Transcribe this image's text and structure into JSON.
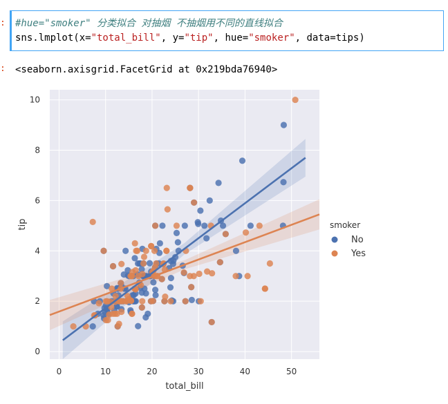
{
  "cell": {
    "prompt_in": ":",
    "prompt_out": ":",
    "comment": "#hue=\"smoker\" 分类拟合 对抽烟 不抽烟用不同的直线拟合",
    "code_fn": "sns.lmplot(x=",
    "code_x": "\"total_bill\"",
    "code_sep1": ", y=",
    "code_y": "\"tip\"",
    "code_sep2": ", hue=",
    "code_hue": "\"smoker\"",
    "code_sep3": ", data=tips)",
    "output": "<seaborn.axisgrid.FacetGrid at 0x219bda76940>"
  },
  "colors": {
    "no": "#4c72b0",
    "yes": "#dd8452",
    "plot_bg": "#eaeaf2",
    "grid": "#ffffff"
  },
  "chart_data": {
    "type": "scatter",
    "xlabel": "total_bill",
    "ylabel": "tip",
    "xlim": [
      -2,
      56
    ],
    "ylim": [
      -0.3,
      10.4
    ],
    "xticks": [
      0,
      10,
      20,
      30,
      40,
      50
    ],
    "yticks": [
      0,
      2,
      4,
      6,
      8,
      10
    ],
    "legend_title": "smoker",
    "legend_placement": "right",
    "series": [
      {
        "name": "No",
        "color": "#4c72b0",
        "fit": {
          "x": [
            0.8,
            53
          ],
          "y": [
            0.45,
            7.7
          ]
        },
        "points": [
          [
            16.99,
            1.01
          ],
          [
            10.34,
            1.66
          ],
          [
            21.01,
            3.5
          ],
          [
            23.68,
            3.31
          ],
          [
            24.59,
            3.61
          ],
          [
            25.29,
            4.71
          ],
          [
            8.77,
            2.0
          ],
          [
            26.88,
            3.12
          ],
          [
            15.04,
            1.96
          ],
          [
            14.78,
            3.23
          ],
          [
            10.27,
            1.71
          ],
          [
            35.26,
            5.0
          ],
          [
            15.42,
            1.57
          ],
          [
            18.43,
            3.0
          ],
          [
            14.83,
            3.02
          ],
          [
            21.58,
            3.92
          ],
          [
            10.33,
            1.67
          ],
          [
            16.29,
            3.71
          ],
          [
            16.97,
            3.5
          ],
          [
            20.65,
            3.35
          ],
          [
            17.92,
            4.08
          ],
          [
            20.29,
            2.75
          ],
          [
            15.77,
            2.23
          ],
          [
            39.42,
            7.58
          ],
          [
            19.82,
            3.18
          ],
          [
            17.81,
            2.34
          ],
          [
            13.37,
            2.0
          ],
          [
            12.69,
            2.0
          ],
          [
            21.7,
            4.3
          ],
          [
            19.65,
            3.0
          ],
          [
            9.55,
            1.45
          ],
          [
            18.35,
            2.5
          ],
          [
            15.06,
            3.0
          ],
          [
            20.69,
            2.45
          ],
          [
            17.78,
            3.27
          ],
          [
            24.06,
            3.6
          ],
          [
            16.31,
            2.0
          ],
          [
            16.93,
            3.07
          ],
          [
            18.69,
            2.31
          ],
          [
            31.27,
            5.0
          ],
          [
            16.04,
            2.24
          ],
          [
            17.46,
            2.54
          ],
          [
            13.94,
            3.06
          ],
          [
            9.68,
            1.32
          ],
          [
            30.4,
            5.6
          ],
          [
            18.29,
            3.0
          ],
          [
            22.23,
            5.0
          ],
          [
            32.4,
            6.0
          ],
          [
            28.55,
            2.05
          ],
          [
            18.04,
            3.0
          ],
          [
            12.54,
            2.5
          ],
          [
            10.29,
            2.6
          ],
          [
            34.81,
            5.2
          ],
          [
            9.94,
            1.56
          ],
          [
            25.56,
            4.34
          ],
          [
            19.49,
            3.51
          ],
          [
            48.27,
            6.73
          ],
          [
            20.08,
            3.15
          ],
          [
            16.0,
            2.0
          ],
          [
            34.3,
            6.7
          ],
          [
            41.19,
            5.0
          ],
          [
            27.05,
            5.0
          ],
          [
            16.43,
            2.3
          ],
          [
            8.35,
            1.5
          ],
          [
            18.64,
            1.36
          ],
          [
            11.87,
            1.63
          ],
          [
            9.78,
            1.73
          ],
          [
            7.51,
            2.0
          ],
          [
            14.07,
            2.5
          ],
          [
            13.13,
            2.0
          ],
          [
            17.26,
            2.74
          ],
          [
            24.55,
            2.0
          ],
          [
            19.77,
            2.0
          ],
          [
            29.85,
            5.14
          ],
          [
            48.17,
            5.0
          ],
          [
            25.0,
            3.75
          ],
          [
            13.39,
            2.61
          ],
          [
            16.49,
            2.0
          ],
          [
            21.5,
            3.5
          ],
          [
            12.66,
            2.5
          ],
          [
            16.21,
            2.0
          ],
          [
            13.81,
            2.0
          ],
          [
            24.52,
            3.48
          ],
          [
            20.76,
            2.24
          ],
          [
            31.71,
            4.5
          ],
          [
            20.69,
            5.0
          ],
          [
            7.25,
            1.0
          ],
          [
            12.6,
            1.0
          ],
          [
            32.83,
            1.17
          ],
          [
            35.83,
            4.67
          ],
          [
            29.03,
            5.92
          ],
          [
            27.18,
            2.0
          ],
          [
            22.67,
            2.0
          ],
          [
            17.82,
            1.75
          ],
          [
            18.78,
            3.0
          ],
          [
            48.33,
            9.0
          ],
          [
            15.48,
            2.02
          ],
          [
            11.38,
            2.0
          ],
          [
            11.02,
            1.98
          ],
          [
            17.47,
            3.5
          ],
          [
            12.26,
            2.0
          ],
          [
            15.98,
            3.0
          ],
          [
            28.17,
            6.5
          ],
          [
            14.31,
            4.0
          ],
          [
            20.45,
            3.0
          ],
          [
            13.28,
            2.72
          ],
          [
            22.12,
            2.88
          ],
          [
            20.23,
            2.01
          ],
          [
            11.61,
            3.39
          ],
          [
            10.07,
            1.83
          ],
          [
            12.43,
            1.8
          ],
          [
            26.59,
            3.41
          ],
          [
            38.73,
            3.0
          ],
          [
            24.27,
            2.03
          ],
          [
            12.76,
            2.23
          ],
          [
            30.06,
            2.0
          ],
          [
            22.42,
            3.48
          ],
          [
            20.92,
            4.08
          ],
          [
            15.36,
            1.64
          ],
          [
            9.6,
            4.0
          ],
          [
            34.63,
            3.55
          ],
          [
            38.07,
            4.0
          ],
          [
            23.95,
            2.55
          ],
          [
            25.71,
            4.0
          ],
          [
            17.31,
            3.5
          ],
          [
            29.93,
            5.07
          ],
          [
            10.65,
            1.5
          ],
          [
            12.43,
            1.8
          ],
          [
            24.08,
            2.92
          ],
          [
            11.69,
            2.31
          ],
          [
            13.42,
            1.68
          ],
          [
            14.26,
            2.5
          ],
          [
            15.95,
            2.0
          ],
          [
            12.48,
            2.52
          ],
          [
            19.08,
            1.5
          ],
          [
            13.0,
            2.0
          ],
          [
            18.15,
            3.5
          ],
          [
            19.44,
            3.0
          ],
          [
            28.44,
            2.56
          ]
        ]
      },
      {
        "name": "Yes",
        "color": "#dd8452",
        "fit": {
          "x": [
            -2,
            56
          ],
          "y": [
            1.45,
            5.45
          ]
        },
        "points": [
          [
            38.01,
            3.0
          ],
          [
            11.24,
            1.76
          ],
          [
            20.29,
            3.21
          ],
          [
            13.81,
            2.0
          ],
          [
            11.02,
            1.98
          ],
          [
            18.29,
            3.76
          ],
          [
            17.59,
            2.64
          ],
          [
            20.08,
            3.15
          ],
          [
            16.45,
            2.47
          ],
          [
            3.07,
            1.0
          ],
          [
            20.23,
            2.01
          ],
          [
            15.01,
            2.09
          ],
          [
            12.02,
            1.97
          ],
          [
            17.07,
            3.0
          ],
          [
            26.86,
            3.14
          ],
          [
            25.28,
            5.0
          ],
          [
            14.73,
            2.2
          ],
          [
            10.51,
            1.25
          ],
          [
            17.92,
            3.08
          ],
          [
            44.3,
            2.5
          ],
          [
            22.42,
            3.48
          ],
          [
            15.48,
            2.02
          ],
          [
            5.75,
            1.0
          ],
          [
            16.32,
            4.3
          ],
          [
            22.75,
            3.25
          ],
          [
            40.17,
            4.73
          ],
          [
            27.28,
            4.0
          ],
          [
            12.03,
            1.5
          ],
          [
            21.01,
            3.0
          ],
          [
            12.46,
            1.5
          ],
          [
            11.35,
            2.5
          ],
          [
            15.38,
            3.0
          ],
          [
            44.3,
            2.5
          ],
          [
            22.49,
            3.5
          ],
          [
            20.65,
            3.35
          ],
          [
            14.48,
            2.0
          ],
          [
            28.97,
            3.0
          ],
          [
            32.68,
            5.0
          ],
          [
            23.33,
            5.65
          ],
          [
            45.35,
            3.5
          ],
          [
            19.81,
            4.19
          ],
          [
            28.15,
            3.0
          ],
          [
            11.59,
            1.5
          ],
          [
            7.74,
            1.44
          ],
          [
            30.14,
            3.09
          ],
          [
            12.16,
            2.2
          ],
          [
            13.42,
            3.48
          ],
          [
            8.58,
            1.92
          ],
          [
            13.42,
            1.58
          ],
          [
            16.27,
            2.5
          ],
          [
            10.09,
            2.0
          ],
          [
            20.45,
            3.0
          ],
          [
            13.28,
            2.72
          ],
          [
            22.12,
            2.88
          ],
          [
            24.01,
            2.0
          ],
          [
            15.69,
            3.0
          ],
          [
            11.61,
            3.39
          ],
          [
            10.77,
            1.47
          ],
          [
            15.53,
            3.0
          ],
          [
            10.07,
            1.25
          ],
          [
            12.6,
            1.0
          ],
          [
            32.83,
            1.17
          ],
          [
            35.83,
            4.67
          ],
          [
            29.03,
            5.92
          ],
          [
            27.18,
            2.0
          ],
          [
            22.67,
            2.0
          ],
          [
            17.82,
            1.75
          ],
          [
            28.17,
            6.5
          ],
          [
            23.1,
            4.0
          ],
          [
            15.69,
            1.5
          ],
          [
            19.81,
            4.19
          ],
          [
            28.44,
            2.56
          ],
          [
            15.48,
            2.02
          ],
          [
            16.58,
            4.0
          ],
          [
            7.56,
            1.44
          ],
          [
            10.34,
            2.0
          ],
          [
            43.11,
            5.0
          ],
          [
            13.0,
            2.0
          ],
          [
            13.51,
            2.0
          ],
          [
            18.71,
            4.0
          ],
          [
            12.74,
            2.01
          ],
          [
            13.0,
            2.0
          ],
          [
            16.4,
            2.5
          ],
          [
            20.53,
            4.0
          ],
          [
            16.47,
            3.23
          ],
          [
            50.81,
            10.0
          ],
          [
            15.81,
            3.16
          ],
          [
            7.25,
            5.15
          ],
          [
            31.85,
            3.18
          ],
          [
            16.82,
            4.0
          ],
          [
            32.9,
            3.11
          ],
          [
            17.89,
            2.0
          ],
          [
            14.48,
            2.0
          ],
          [
            9.6,
            4.0
          ],
          [
            34.63,
            3.55
          ],
          [
            23.17,
            6.5
          ],
          [
            40.55,
            3.0
          ],
          [
            20.69,
            5.0
          ],
          [
            20.9,
            3.5
          ],
          [
            30.46,
            2.0
          ],
          [
            18.15,
            3.5
          ],
          [
            23.1,
            4.0
          ],
          [
            15.69,
            1.5
          ],
          [
            19.77,
            2.0
          ],
          [
            17.29,
            2.71
          ],
          [
            22.82,
            2.18
          ],
          [
            21.16,
            3.0
          ],
          [
            12.9,
            1.1
          ],
          [
            13.27,
            2.5
          ],
          [
            28.17,
            6.5
          ]
        ]
      }
    ]
  }
}
